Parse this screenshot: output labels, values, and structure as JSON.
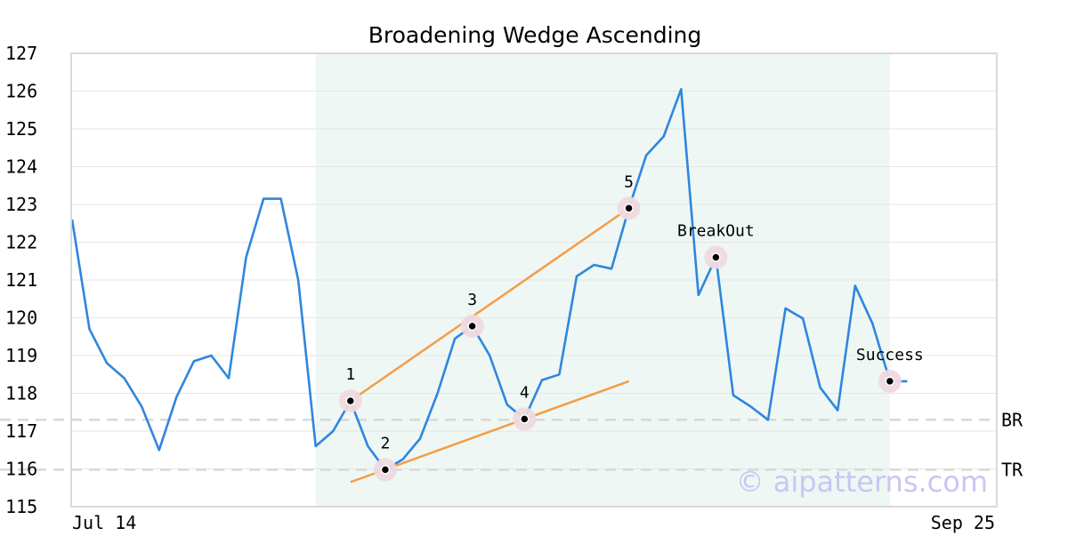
{
  "chart_data": {
    "type": "line",
    "title": "Broadening Wedge Ascending",
    "xlabel": "",
    "ylabel": "",
    "ylim": [
      115,
      127
    ],
    "yticks": [
      115,
      116,
      117,
      118,
      119,
      120,
      121,
      122,
      123,
      124,
      125,
      126,
      127
    ],
    "x_tick_labels": [
      "Jul 14",
      "Sep 25"
    ],
    "grid": true,
    "colors": {
      "price_line": "#2f86de",
      "trend_lines": "#f59c45",
      "pattern_region": "#eef7f4",
      "marker_halo": "#efd9de",
      "reference_lines": "#d8d8d8"
    },
    "series": [
      {
        "values": [
          122.6,
          119.7,
          118.8,
          118.4,
          117.65,
          116.5,
          117.9,
          118.85,
          119.0,
          118.4,
          121.6,
          123.15,
          123.15,
          121.0,
          116.6,
          117.0,
          117.8,
          116.6,
          115.98,
          116.25,
          116.8,
          118.0,
          119.45,
          119.78,
          119.0,
          117.7,
          117.32,
          118.35,
          118.5,
          121.1,
          121.4,
          121.3,
          122.9,
          124.3,
          124.8,
          126.05,
          120.6,
          121.6,
          117.95,
          117.65,
          117.3,
          120.25,
          119.98,
          118.15,
          117.55,
          120.85,
          119.85,
          118.32,
          118.32
        ]
      }
    ],
    "pattern_region": {
      "start_index": 14,
      "end_index": 47
    },
    "points": [
      {
        "label": "1",
        "index": 16,
        "value": 117.8
      },
      {
        "label": "2",
        "index": 18,
        "value": 115.98
      },
      {
        "label": "3",
        "index": 23,
        "value": 119.78
      },
      {
        "label": "4",
        "index": 26,
        "value": 117.32
      },
      {
        "label": "5",
        "index": 32,
        "value": 122.9
      },
      {
        "label": "BreakOut",
        "index": 37,
        "value": 121.6
      },
      {
        "label": "Success",
        "index": 47,
        "value": 118.32
      }
    ],
    "trend_lines": [
      {
        "from": {
          "index": 16,
          "value": 117.8
        },
        "to": {
          "index": 32,
          "value": 122.9
        }
      },
      {
        "from": {
          "index": 16,
          "value": 115.65
        },
        "to": {
          "index": 32,
          "value": 118.32
        }
      }
    ],
    "reference_lines": [
      {
        "label": "BR",
        "value": 117.3
      },
      {
        "label": "TR",
        "value": 115.98
      }
    ],
    "watermark": "© aipatterns.com"
  }
}
